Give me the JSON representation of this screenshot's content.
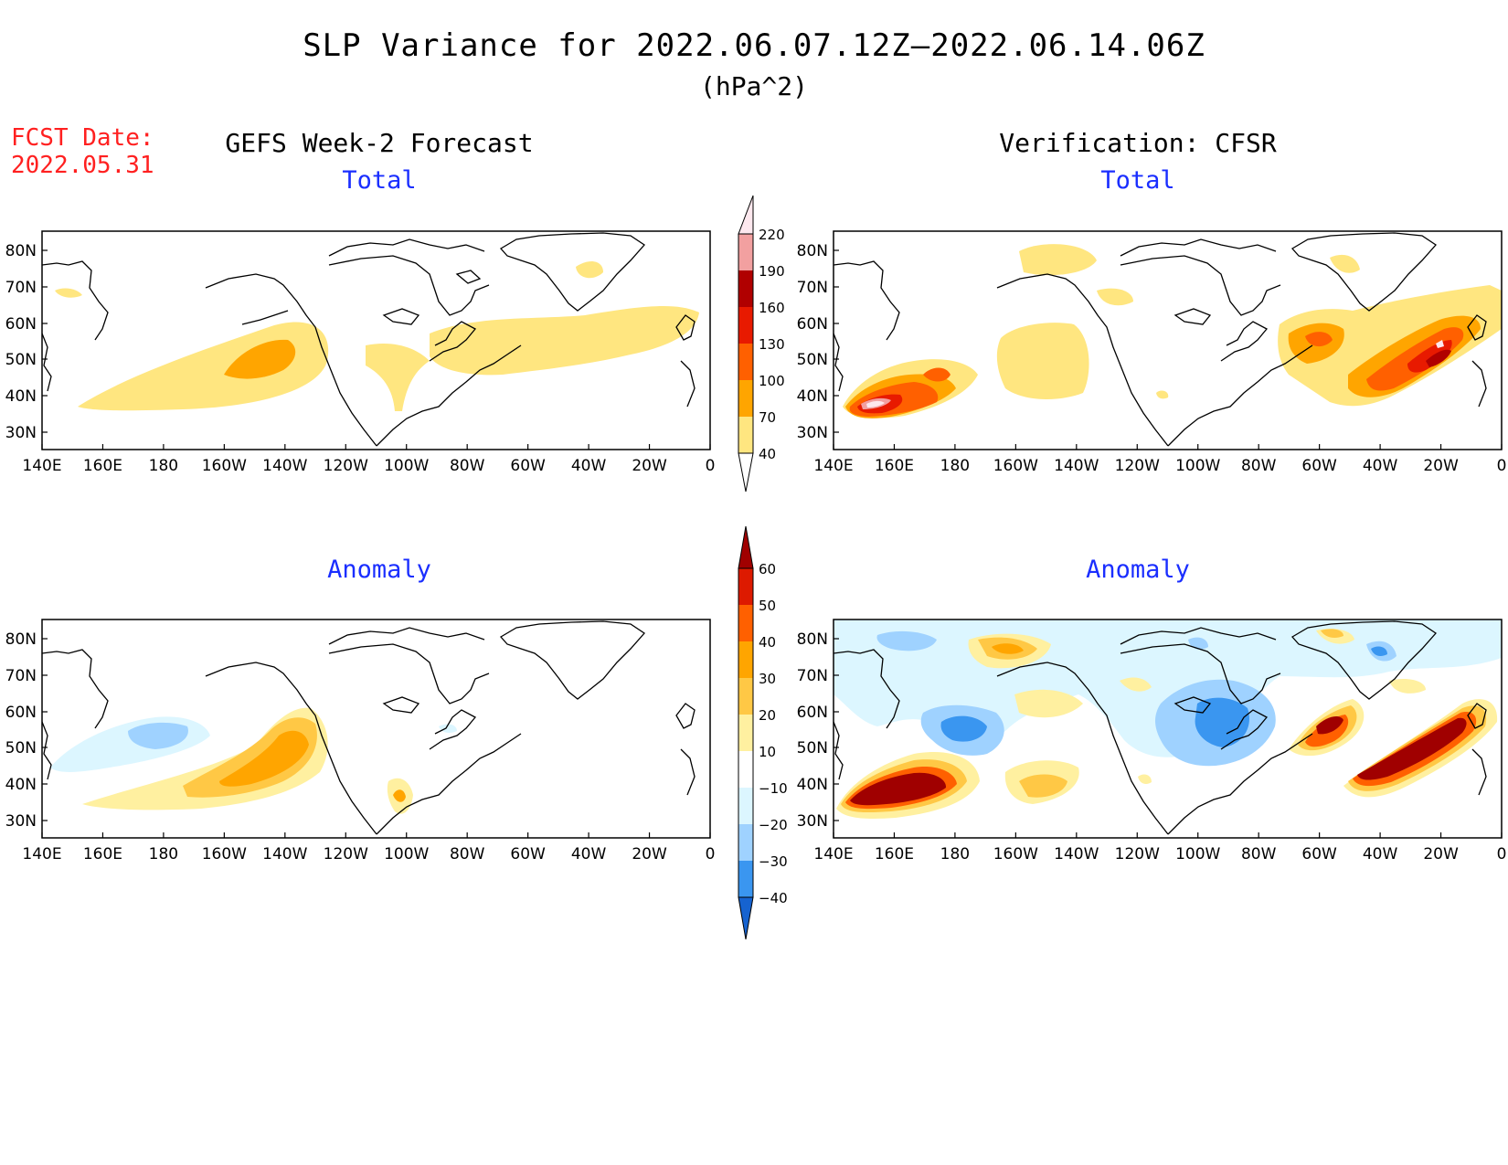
{
  "figure": {
    "title": "SLP Variance for 2022.06.07.12Z–2022.06.14.06Z",
    "units": "(hPa^2)",
    "forecast_date_label": "FCST Date:",
    "forecast_date": "2022.05.31",
    "left_column_title": "GEFS Week-2 Forecast",
    "right_column_title": "Verification: CFSR"
  },
  "panels": [
    {
      "id": "forecast-total",
      "title": "Total"
    },
    {
      "id": "verification-total",
      "title": "Total"
    },
    {
      "id": "forecast-anomaly",
      "title": "Anomaly"
    },
    {
      "id": "verification-anomaly",
      "title": "Anomaly"
    }
  ],
  "axes": {
    "lon_ticks": [
      "140E",
      "160E",
      "180",
      "160W",
      "140W",
      "120W",
      "100W",
      "80W",
      "60W",
      "40W",
      "20W",
      "0"
    ],
    "lat_ticks": [
      "80N",
      "70N",
      "60N",
      "50N",
      "40N",
      "30N"
    ]
  },
  "colorbars": {
    "total": {
      "levels": [
        "40",
        "70",
        "100",
        "130",
        "160",
        "190",
        "220"
      ],
      "colors": [
        "#ffe680",
        "#ffa500",
        "#ff6000",
        "#e81a00",
        "#b00000",
        "#f2a0a0",
        "#fde8ee"
      ]
    },
    "anomaly": {
      "levels": [
        "60",
        "50",
        "40",
        "30",
        "20",
        "10",
        "−10",
        "−20",
        "−30",
        "−40"
      ],
      "colors": [
        "#a00000",
        "#dd1a00",
        "#ff6000",
        "#ffa500",
        "#ffc845",
        "#fff0a0",
        "#ffffff",
        "#dcf6ff",
        "#9fd2ff",
        "#3a96f0",
        "#1663d0"
      ]
    }
  },
  "colors": {
    "title_text": "#000000",
    "fcst_text": "#ff2020",
    "panel_title": "#1a2eff"
  }
}
